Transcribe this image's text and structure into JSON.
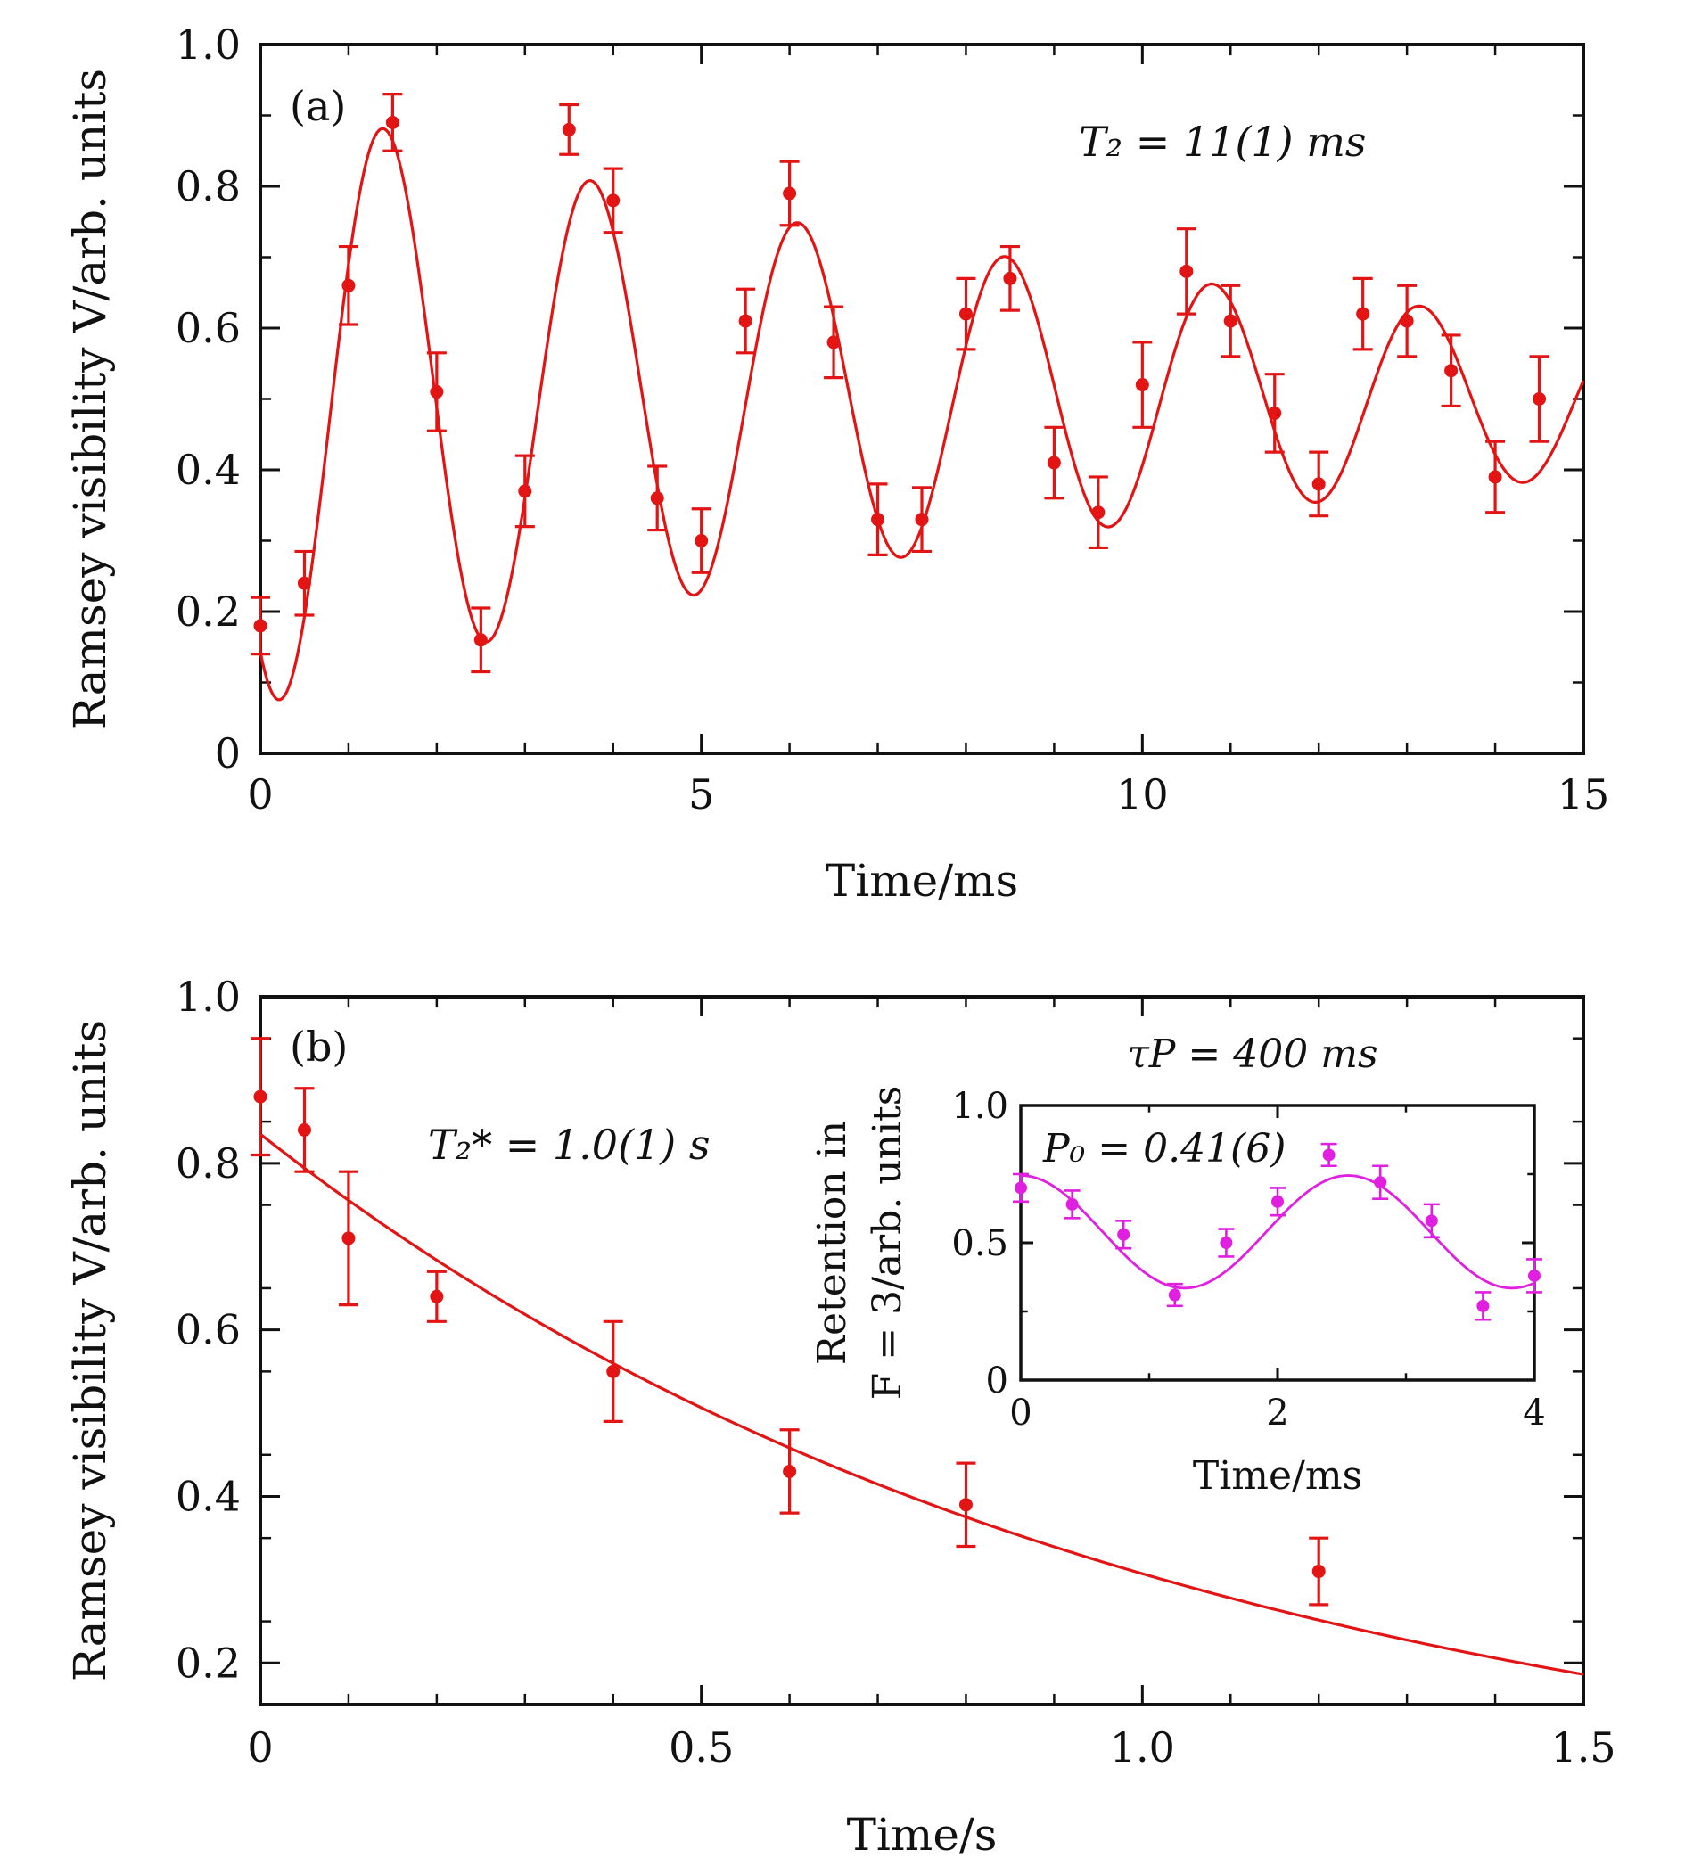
{
  "chart_data": [
    {
      "type": "scatter",
      "panel_label": "(a)",
      "xlabel": "Time/ms",
      "ylabel": "Ramsey visibility V/arb. units",
      "xlim": [
        0,
        15
      ],
      "ylim": [
        0,
        1.0
      ],
      "xticks": [
        "0",
        "5",
        "10",
        "15"
      ],
      "yticks": [
        "0",
        "0.2",
        "0.4",
        "0.6",
        "0.8",
        "1.0"
      ],
      "annotation": "T₂ = 11(1) ms",
      "color": "#e31414",
      "fit": {
        "model": "damped-cosine",
        "offset": 0.5,
        "amplitude": 0.433,
        "tau": 11,
        "period": 2.35,
        "phase_time": 1.4
      },
      "points": [
        {
          "x": 0,
          "y": 0.18,
          "err": 0.04
        },
        {
          "x": 0.5,
          "y": 0.24,
          "err": 0.045
        },
        {
          "x": 1.0,
          "y": 0.66,
          "err": 0.055
        },
        {
          "x": 1.5,
          "y": 0.89,
          "err": 0.04
        },
        {
          "x": 2.0,
          "y": 0.51,
          "err": 0.055
        },
        {
          "x": 2.5,
          "y": 0.16,
          "err": 0.045
        },
        {
          "x": 3.0,
          "y": 0.37,
          "err": 0.05
        },
        {
          "x": 3.5,
          "y": 0.88,
          "err": 0.035
        },
        {
          "x": 4.0,
          "y": 0.78,
          "err": 0.045
        },
        {
          "x": 4.5,
          "y": 0.36,
          "err": 0.045
        },
        {
          "x": 5.0,
          "y": 0.3,
          "err": 0.045
        },
        {
          "x": 5.5,
          "y": 0.61,
          "err": 0.045
        },
        {
          "x": 6.0,
          "y": 0.79,
          "err": 0.045
        },
        {
          "x": 6.5,
          "y": 0.58,
          "err": 0.05
        },
        {
          "x": 7.0,
          "y": 0.33,
          "err": 0.05
        },
        {
          "x": 7.5,
          "y": 0.33,
          "err": 0.045
        },
        {
          "x": 8.0,
          "y": 0.62,
          "err": 0.05
        },
        {
          "x": 8.5,
          "y": 0.67,
          "err": 0.045
        },
        {
          "x": 9.0,
          "y": 0.41,
          "err": 0.05
        },
        {
          "x": 9.5,
          "y": 0.34,
          "err": 0.05
        },
        {
          "x": 10.0,
          "y": 0.52,
          "err": 0.06
        },
        {
          "x": 10.5,
          "y": 0.68,
          "err": 0.06
        },
        {
          "x": 11.0,
          "y": 0.61,
          "err": 0.05
        },
        {
          "x": 11.5,
          "y": 0.48,
          "err": 0.055
        },
        {
          "x": 12.0,
          "y": 0.38,
          "err": 0.045
        },
        {
          "x": 12.5,
          "y": 0.62,
          "err": 0.05
        },
        {
          "x": 13.0,
          "y": 0.61,
          "err": 0.05
        },
        {
          "x": 13.5,
          "y": 0.54,
          "err": 0.05
        },
        {
          "x": 14.0,
          "y": 0.39,
          "err": 0.05
        },
        {
          "x": 14.5,
          "y": 0.5,
          "err": 0.06
        }
      ]
    },
    {
      "type": "scatter",
      "panel_label": "(b)",
      "xlabel": "Time/s",
      "ylabel": "Ramsey visibility V/arb. units",
      "xlim": [
        0,
        1.5
      ],
      "ylim": [
        0.15,
        1.0
      ],
      "xticks": [
        "0",
        "0.5",
        "1.0",
        "1.5"
      ],
      "yticks": [
        "0.2",
        "0.4",
        "0.6",
        "0.8",
        "1.0"
      ],
      "annotation": "T₂* = 1.0(1) s",
      "color": "#e31414",
      "fit": {
        "model": "exponential",
        "amplitude": 0.835,
        "tau": 1.0
      },
      "points": [
        {
          "x": 0,
          "y": 0.88,
          "err": 0.07
        },
        {
          "x": 0.05,
          "y": 0.84,
          "err": 0.05
        },
        {
          "x": 0.1,
          "y": 0.71,
          "err": 0.08
        },
        {
          "x": 0.2,
          "y": 0.64,
          "err": 0.03
        },
        {
          "x": 0.4,
          "y": 0.55,
          "err": 0.06
        },
        {
          "x": 0.6,
          "y": 0.43,
          "err": 0.05
        },
        {
          "x": 0.8,
          "y": 0.39,
          "err": 0.05
        },
        {
          "x": 1.2,
          "y": 0.31,
          "err": 0.04
        }
      ],
      "inset": {
        "type": "scatter",
        "title": "τP = 400 ms",
        "xlabel": "Time/ms",
        "ylabel_line1": "Retention in",
        "ylabel_line2": "F = 3/arb. units",
        "xlim": [
          0,
          4
        ],
        "ylim": [
          0,
          1.0
        ],
        "xticks": [
          "0",
          "2",
          "4"
        ],
        "yticks": [
          "0",
          "0.5",
          "1.0"
        ],
        "annotation": "P₀ = 0.41(6)",
        "color": "#e01fe0",
        "fit": {
          "model": "cosine",
          "offset": 0.54,
          "amplitude": 0.205,
          "period": 2.55
        },
        "points": [
          {
            "x": 0,
            "y": 0.7,
            "err": 0.05
          },
          {
            "x": 0.4,
            "y": 0.64,
            "err": 0.05
          },
          {
            "x": 0.8,
            "y": 0.53,
            "err": 0.05
          },
          {
            "x": 1.2,
            "y": 0.31,
            "err": 0.04
          },
          {
            "x": 1.6,
            "y": 0.5,
            "err": 0.05
          },
          {
            "x": 2.0,
            "y": 0.65,
            "err": 0.05
          },
          {
            "x": 2.4,
            "y": 0.82,
            "err": 0.04
          },
          {
            "x": 2.8,
            "y": 0.72,
            "err": 0.06
          },
          {
            "x": 3.2,
            "y": 0.58,
            "err": 0.06
          },
          {
            "x": 3.6,
            "y": 0.27,
            "err": 0.05
          },
          {
            "x": 4.0,
            "y": 0.38,
            "err": 0.06
          }
        ]
      }
    }
  ]
}
